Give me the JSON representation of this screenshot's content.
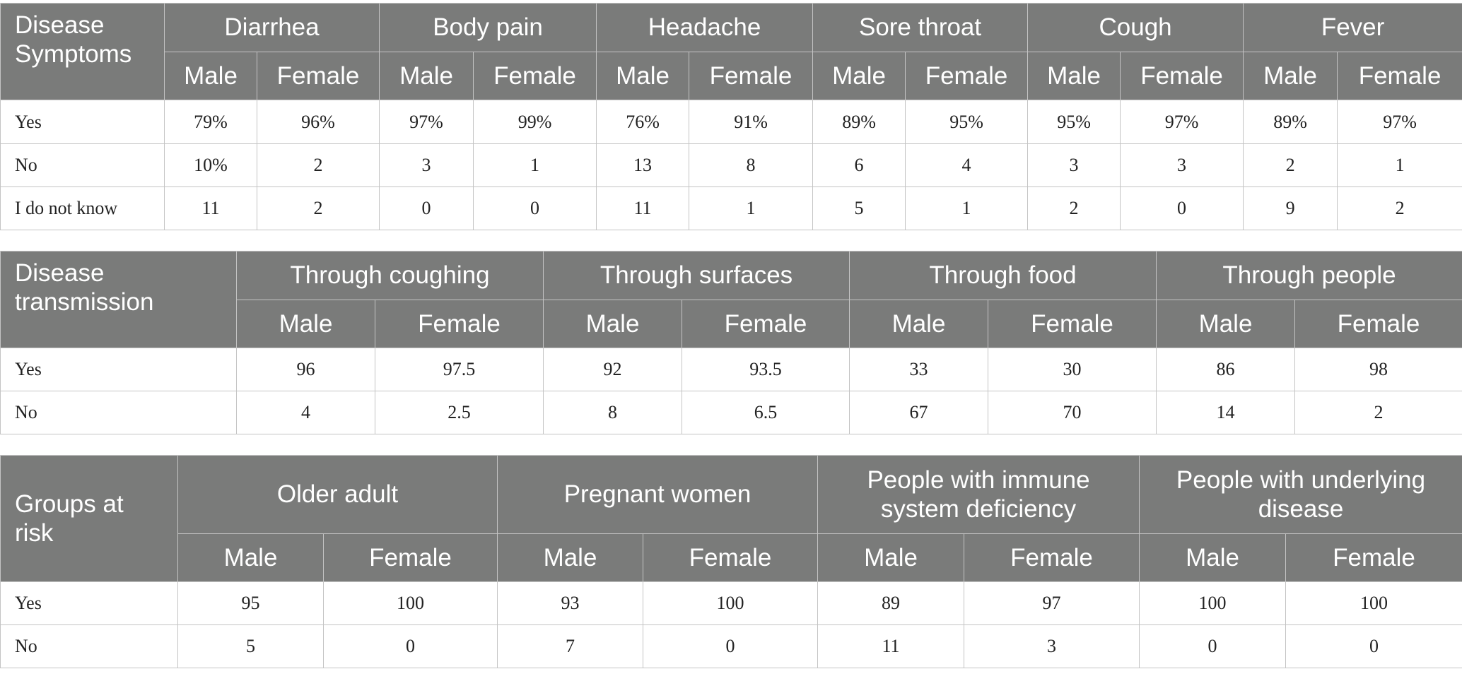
{
  "tables": [
    {
      "corner": "Disease Symptoms",
      "groups": [
        "Diarrhea",
        "Body pain",
        "Headache",
        "Sore throat",
        "Cough",
        "Fever"
      ],
      "sub_male": "Male",
      "sub_female": "Female",
      "rows": [
        {
          "label": "Yes",
          "values": [
            "79%",
            "96%",
            "97%",
            "99%",
            "76%",
            "91%",
            "89%",
            "95%",
            "95%",
            "97%",
            "89%",
            "97%"
          ]
        },
        {
          "label": "No",
          "values": [
            "10%",
            "2",
            "3",
            "1",
            "13",
            "8",
            "6",
            "4",
            "3",
            "3",
            "2",
            "1"
          ]
        },
        {
          "label": "I do not know",
          "values": [
            "11",
            "2",
            "0",
            "0",
            "11",
            "1",
            "5",
            "1",
            "2",
            "0",
            "9",
            "2"
          ]
        }
      ]
    },
    {
      "corner": "Disease transmission",
      "groups": [
        "Through coughing",
        "Through surfaces",
        "Through food",
        "Through people"
      ],
      "sub_male": "Male",
      "sub_female": "Female",
      "rows": [
        {
          "label": "Yes",
          "values": [
            "96",
            "97.5",
            "92",
            "93.5",
            "33",
            "30",
            "86",
            "98"
          ]
        },
        {
          "label": "No",
          "values": [
            "4",
            "2.5",
            "8",
            "6.5",
            "67",
            "70",
            "14",
            "2"
          ]
        }
      ]
    },
    {
      "corner": "Groups at risk",
      "groups": [
        "Older adult",
        "Pregnant women",
        "People with immune system deficiency",
        "People with underlying disease"
      ],
      "sub_male": "Male",
      "sub_female": "Female",
      "rows": [
        {
          "label": "Yes",
          "values": [
            "95",
            "100",
            "93",
            "100",
            "89",
            "97",
            "100",
            "100"
          ]
        },
        {
          "label": "No",
          "values": [
            "5",
            "0",
            "7",
            "0",
            "11",
            "3",
            "0",
            "0"
          ]
        }
      ]
    }
  ],
  "colors": {
    "header_bg": "#7a7b7a",
    "header_text": "#ffffff",
    "border": "#c4c4c4",
    "body_text": "#222222"
  }
}
